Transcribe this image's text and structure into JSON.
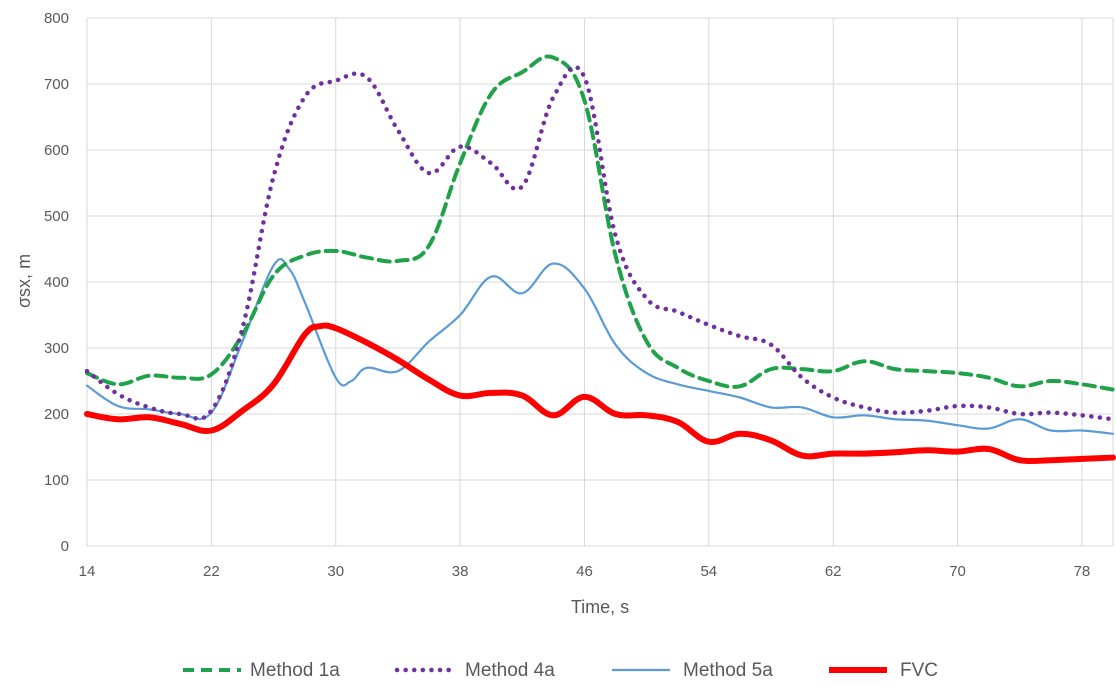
{
  "chart_data": {
    "type": "line",
    "title": "",
    "xlabel": "Time, s",
    "ylabel": "σsx, m",
    "xlim": [
      14,
      80
    ],
    "ylim": [
      0,
      800
    ],
    "x_ticks": [
      14,
      22,
      30,
      38,
      46,
      54,
      62,
      70,
      78
    ],
    "y_ticks": [
      0,
      100,
      200,
      300,
      400,
      500,
      600,
      700,
      800
    ],
    "x_tick_labels": [
      "14",
      "22",
      "30",
      "38",
      "46",
      "54",
      "62",
      "70",
      "78"
    ],
    "y_tick_labels": [
      "0",
      "100",
      "200",
      "300",
      "400",
      "500",
      "600",
      "700",
      "800"
    ],
    "grid": "both",
    "legend_position": "bottom",
    "series": [
      {
        "name": "Method 1a",
        "color": "#1fa24a",
        "style": "dashed",
        "x": [
          14,
          16,
          18,
          20,
          22,
          24,
          26,
          28,
          30,
          32,
          34,
          36,
          38,
          40,
          42,
          44,
          46,
          48,
          50,
          52,
          54,
          56,
          58,
          60,
          62,
          64,
          66,
          68,
          70,
          72,
          74,
          76,
          78,
          80
        ],
        "y": [
          262,
          245,
          258,
          255,
          260,
          320,
          410,
          440,
          447,
          437,
          432,
          455,
          580,
          685,
          718,
          740,
          675,
          440,
          310,
          270,
          250,
          242,
          268,
          268,
          265,
          280,
          268,
          265,
          262,
          255,
          242,
          250,
          245,
          237
        ]
      },
      {
        "name": "Method 4a",
        "color": "#7030a0",
        "style": "dotted",
        "x": [
          14,
          16,
          18,
          20,
          22,
          24,
          26,
          28,
          30,
          32,
          34,
          36,
          38,
          40,
          42,
          44,
          46,
          48,
          50,
          52,
          54,
          56,
          58,
          60,
          62,
          64,
          66,
          68,
          70,
          72,
          74,
          76,
          78,
          80
        ],
        "y": [
          265,
          230,
          210,
          200,
          205,
          330,
          560,
          680,
          705,
          710,
          630,
          565,
          605,
          580,
          545,
          680,
          710,
          470,
          375,
          355,
          335,
          318,
          305,
          255,
          225,
          210,
          202,
          205,
          212,
          210,
          200,
          202,
          198,
          192
        ]
      },
      {
        "name": "Method 5a",
        "color": "#5b9bd5",
        "style": "solid",
        "x": [
          14,
          16,
          18,
          20,
          22,
          24,
          26,
          27,
          28,
          30,
          31,
          32,
          34,
          36,
          38,
          40,
          42,
          44,
          46,
          48,
          50,
          52,
          54,
          56,
          58,
          60,
          62,
          64,
          66,
          68,
          70,
          72,
          74,
          76,
          78,
          80
        ],
        "y": [
          243,
          212,
          207,
          200,
          202,
          310,
          425,
          420,
          370,
          255,
          250,
          270,
          265,
          310,
          350,
          408,
          383,
          428,
          390,
          305,
          262,
          245,
          235,
          225,
          210,
          210,
          195,
          198,
          192,
          190,
          183,
          178,
          192,
          175,
          175,
          170
        ]
      },
      {
        "name": "FVC",
        "color": "#ff0000",
        "style": "thick",
        "x": [
          14,
          16,
          18,
          20,
          22,
          24,
          26,
          28,
          29,
          30,
          32,
          34,
          36,
          38,
          40,
          42,
          44,
          46,
          48,
          50,
          52,
          54,
          56,
          58,
          60,
          62,
          64,
          66,
          68,
          70,
          72,
          74,
          76,
          78,
          80
        ],
        "y": [
          200,
          192,
          195,
          185,
          175,
          205,
          245,
          320,
          333,
          330,
          308,
          282,
          252,
          228,
          232,
          228,
          198,
          226,
          200,
          198,
          188,
          158,
          170,
          160,
          137,
          140,
          140,
          142,
          145,
          143,
          147,
          130,
          130,
          132,
          134
        ]
      }
    ]
  }
}
